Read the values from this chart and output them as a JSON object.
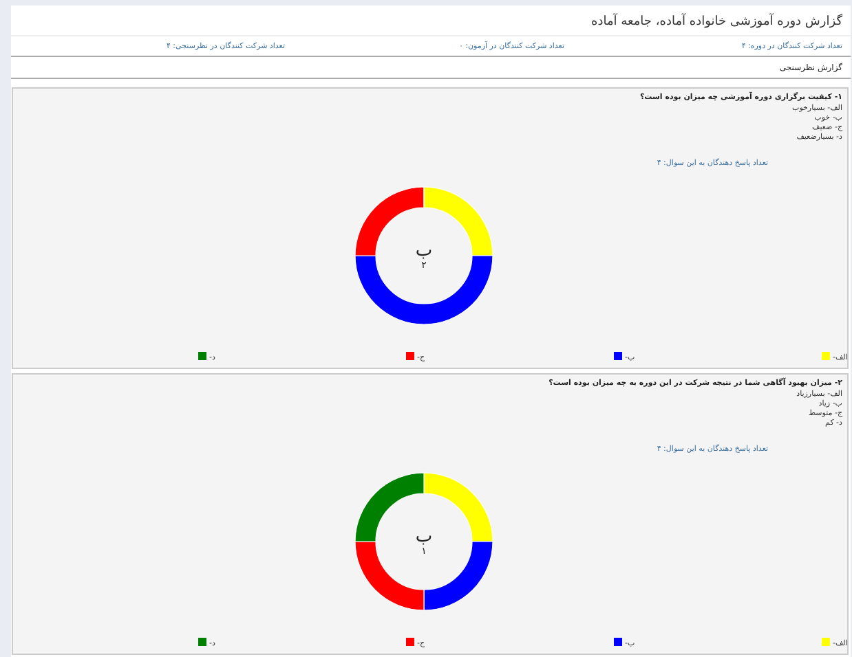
{
  "chart_data": [
    {
      "type": "other",
      "title": "گزارش دوره آموزشی خانواده آماده، جامعه آماده",
      "subtitle": "گزارش نظرسنجی",
      "annotations": [
        "تعداد شرکت کنندگان در دوره: ۴",
        "تعداد شرکت کنندگان در آزمون: ۰",
        "تعداد شرکت کنندگان در نظرسنجی: ۴"
      ]
    },
    {
      "type": "donut",
      "title": "۱- کیفیت برگزاری دوره آموزشی چه میزان بوده است؟",
      "annotations": [
        "الف- بسیارخوب",
        "ب- خوب",
        "ج- ضعیف",
        "د- بسیارضعیف",
        "تعداد پاسخ دهندگان به این سوال: ۴",
        "ب",
        "۲"
      ],
      "categories": [
        "الف-",
        "ب-",
        "ج-",
        "د-"
      ],
      "values": [
        25,
        50,
        25,
        0
      ],
      "colors": [
        "#ffff00",
        "#0000ff",
        "#ff0000",
        "#008000"
      ],
      "legend": "bottom"
    },
    {
      "type": "donut",
      "title": "۲- میزان بهبود آگاهی شما در نتیجه شرکت در این دوره به چه میزان بوده است؟",
      "annotations": [
        "الف- بسیارزیاد",
        "ب- زیاد",
        "ج- متوسط",
        "د- کم",
        "تعداد پاسخ دهندگان به این سوال: ۴",
        "ب",
        "۱"
      ],
      "categories": [
        "الف-",
        "ب-",
        "ج-",
        "د-"
      ],
      "values": [
        25,
        25,
        25,
        25
      ],
      "colors": [
        "#ffff00",
        "#0000ff",
        "#ff0000",
        "#008000"
      ],
      "legend": "bottom"
    }
  ]
}
